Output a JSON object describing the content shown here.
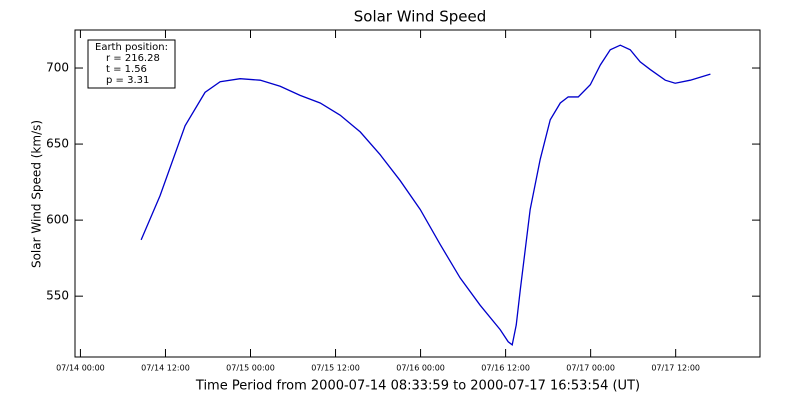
{
  "chart_data": {
    "type": "line",
    "title": "Solar Wind Speed",
    "x_label": "Time Period from 2000-07-14 08:33:59 to 2000-07-17 16:53:54 (UT)",
    "y_label": "Solar Wind Speed (km/s)",
    "annotation": [
      "Earth position:",
      "r = 216.28",
      "t = 1.56",
      "p = 3.31"
    ],
    "x": [
      "07/14 08:34",
      "07/14 11:14",
      "07/14 14:46",
      "07/14 17:35",
      "07/14 19:43",
      "07/14 22:32",
      "07/15 01:22",
      "07/15 04:11",
      "07/15 07:00",
      "07/15 09:50",
      "07/15 12:39",
      "07/15 15:29",
      "07/15 18:18",
      "07/15 21:07",
      "07/15 23:57",
      "07/16 02:46",
      "07/16 05:35",
      "07/16 08:25",
      "07/16 11:14",
      "07/16 12:22",
      "07/16 12:56",
      "07/16 13:30",
      "07/16 14:04",
      "07/16 15:28",
      "07/16 16:53",
      "07/16 18:18",
      "07/16 19:43",
      "07/16 20:50",
      "07/16 22:15",
      "07/16 23:57",
      "07/17 01:22",
      "07/17 02:46",
      "07/17 04:11",
      "07/17 05:35",
      "07/17 07:00",
      "07/17 08:25",
      "07/17 10:32",
      "07/17 11:56",
      "07/17 14:04",
      "07/17 16:54"
    ],
    "series": [
      {
        "name": "Solar wind speed",
        "color": "#0000cc",
        "values": [
          587,
          616,
          662,
          684,
          691,
          693,
          692,
          688,
          682,
          677,
          669,
          658,
          643,
          626,
          607,
          584,
          562,
          544,
          528,
          520,
          518,
          531,
          554,
          607,
          640,
          666,
          677,
          681,
          681,
          689,
          702,
          712,
          715,
          712,
          704,
          699,
          692,
          690,
          692,
          696
        ]
      }
    ],
    "xlim": [
      "07/13 23:14",
      "07/17 23:54"
    ],
    "xticks": [
      "07/14 00:00",
      "07/14 12:00",
      "07/15 00:00",
      "07/15 12:00",
      "07/16 00:00",
      "07/16 12:00",
      "07/17 00:00",
      "07/17 12:00"
    ],
    "ylim": [
      510,
      725
    ],
    "yticks": [
      550,
      600,
      650,
      700
    ],
    "grid": false
  }
}
